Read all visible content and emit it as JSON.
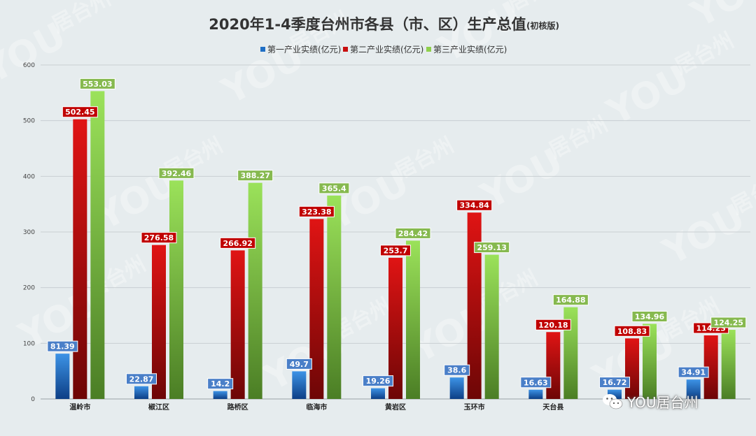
{
  "header": {
    "title": "2020年1-4季度台州市各县（市、区）生产总值",
    "subtitle": "(初核版)"
  },
  "brand": {
    "text": "YOU居台州",
    "icon": "wechat-icon"
  },
  "watermark": {
    "text": "YOU",
    "cn": "居台州"
  },
  "colors": {
    "primary": "#1f6fc5",
    "secondary": "#c80f0f",
    "tertiary": "#8ed04b",
    "label_primary": "#4a7fc8",
    "label_secondary": "#c00000",
    "label_tertiary": "#86b94f"
  },
  "chart_data": {
    "type": "bar",
    "title": "2020年1-4季度台州市各县（市、区）生产总值",
    "subtitle": "(初核版)",
    "categories": [
      "温岭市",
      "椒江区",
      "路桥区",
      "临海市",
      "黄岩区",
      "玉环市",
      "天台县",
      "",
      ""
    ],
    "series": [
      {
        "name": "第一产业实绩(亿元)",
        "values": [
          81.39,
          22.87,
          14.2,
          49.7,
          19.26,
          38.6,
          16.63,
          16.72,
          34.91
        ]
      },
      {
        "name": "第二产业实绩(亿元)",
        "values": [
          502.45,
          276.58,
          266.92,
          323.38,
          253.7,
          334.84,
          120.18,
          108.83,
          114.23
        ]
      },
      {
        "name": "第三产业实绩(亿元)",
        "values": [
          553.03,
          392.46,
          388.27,
          365.4,
          284.42,
          259.13,
          164.88,
          134.96,
          124.25
        ]
      }
    ],
    "yticks": [
      "0",
      "100",
      "200",
      "300",
      "400",
      "500",
      "600"
    ],
    "ylim": [
      0,
      600
    ],
    "grid": true,
    "legend": "top-center"
  }
}
